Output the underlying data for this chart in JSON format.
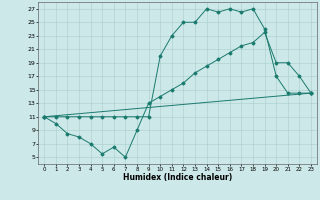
{
  "title": "",
  "xlabel": "Humidex (Indice chaleur)",
  "bg_color": "#cce8e8",
  "grid_color": "#aacccc",
  "line_color": "#1a7a6e",
  "xlim": [
    -0.5,
    23.5
  ],
  "ylim": [
    4,
    28
  ],
  "xticks": [
    0,
    1,
    2,
    3,
    4,
    5,
    6,
    7,
    8,
    9,
    10,
    11,
    12,
    13,
    14,
    15,
    16,
    17,
    18,
    19,
    20,
    21,
    22,
    23
  ],
  "yticks": [
    5,
    7,
    9,
    11,
    13,
    15,
    17,
    19,
    21,
    23,
    25,
    27
  ],
  "line1_x": [
    0,
    1,
    2,
    3,
    4,
    5,
    6,
    7,
    8,
    9,
    10,
    11,
    12,
    13,
    14,
    15,
    16,
    17,
    18,
    19,
    20,
    21,
    22,
    23
  ],
  "line1_y": [
    11,
    10,
    8.5,
    8,
    7,
    5.5,
    6.5,
    5,
    9,
    13,
    14,
    15,
    16,
    17.5,
    18.5,
    19.5,
    20.5,
    21.5,
    22,
    23.5,
    19,
    19,
    17,
    14.5
  ],
  "line2_x": [
    0,
    23
  ],
  "line2_y": [
    11,
    14.5
  ],
  "line3_x": [
    0,
    1,
    2,
    3,
    4,
    5,
    6,
    7,
    8,
    9,
    10,
    11,
    12,
    13,
    14,
    15,
    16,
    17,
    18,
    19,
    20,
    21,
    22,
    23
  ],
  "line3_y": [
    11,
    11,
    11,
    11,
    11,
    11,
    11,
    11,
    11,
    11,
    20,
    23,
    25,
    25,
    27,
    26.5,
    27,
    26.5,
    27,
    24,
    17,
    14.5,
    14.5,
    14.5
  ]
}
